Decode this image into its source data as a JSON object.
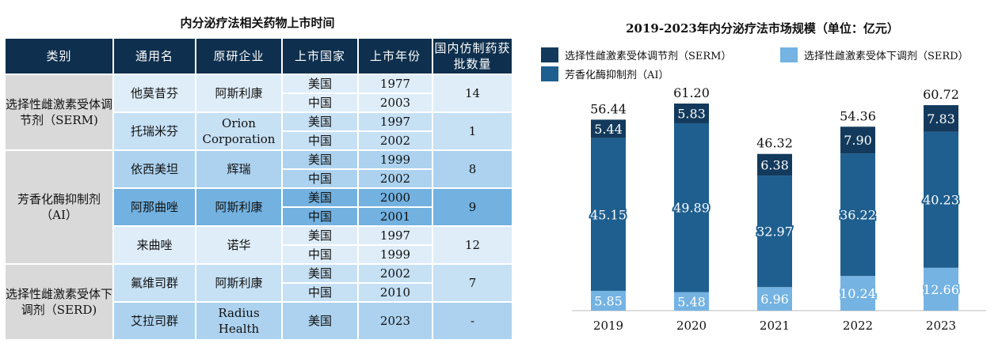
{
  "table": {
    "title": "内分泌疗法相关药物上市时间",
    "headers": [
      "类别",
      "通用名",
      "原研企业",
      "上市国家",
      "上市年份",
      "国内仿制药获批数量"
    ],
    "groups": [
      {
        "category": "选择性雌激素受体调节剂（SERM)",
        "drugs": [
          {
            "name": "他莫昔芬",
            "company": "阿斯利康",
            "launches": [
              {
                "country": "美国",
                "year": "1977"
              },
              {
                "country": "中国",
                "year": "2003"
              }
            ],
            "generics": "14"
          },
          {
            "name": "托瑞米芬",
            "company": "Orion Corporation",
            "launches": [
              {
                "country": "美国",
                "year": "1997"
              },
              {
                "country": "中国",
                "year": "2002"
              }
            ],
            "generics": "1"
          }
        ]
      },
      {
        "category": "芳香化酶抑制剂（AI）",
        "drugs": [
          {
            "name": "依西美坦",
            "company": "辉瑞",
            "launches": [
              {
                "country": "美国",
                "year": "1999"
              },
              {
                "country": "中国",
                "year": "2002"
              }
            ],
            "generics": "8"
          },
          {
            "name": "阿那曲唑",
            "company": "阿斯利康",
            "launches": [
              {
                "country": "美国",
                "year": "2000"
              },
              {
                "country": "中国",
                "year": "2001"
              }
            ],
            "generics": "9"
          },
          {
            "name": "来曲唑",
            "company": "诺华",
            "launches": [
              {
                "country": "美国",
                "year": "1997"
              },
              {
                "country": "中国",
                "year": "1999"
              }
            ],
            "generics": "12"
          }
        ]
      },
      {
        "category": "选择性雌激素受体下调剂（SERD)",
        "drugs": [
          {
            "name": "氟维司群",
            "company": "阿斯利康",
            "launches": [
              {
                "country": "美国",
                "year": "2002"
              },
              {
                "country": "中国",
                "year": "2010"
              }
            ],
            "generics": "7"
          },
          {
            "name": "艾拉司群",
            "company": "Radius Health",
            "launches": [
              {
                "country": "美国",
                "year": "2023"
              }
            ],
            "generics": "-"
          }
        ]
      }
    ],
    "colors": {
      "header": "#0e2f4d",
      "category": "#d9d9d9"
    }
  },
  "chart_data": {
    "type": "bar",
    "stacked": true,
    "title": "2019-2023年内分泌疗法市场规模（单位：亿元）",
    "categories": [
      "2019",
      "2020",
      "2021",
      "2022",
      "2023"
    ],
    "series": [
      {
        "name": "选择性雌激素受体下调剂（SERD）",
        "values": [
          5.85,
          5.48,
          6.96,
          10.24,
          12.66
        ],
        "labels": [
          "5.85",
          "5.48",
          "6.96",
          "10.24",
          "12.66"
        ],
        "color": "#74b3e2"
      },
      {
        "name": "芳香化酶抑制剂（AI）",
        "values": [
          45.15,
          49.89,
          32.97,
          36.22,
          40.23
        ],
        "labels": [
          "45.15",
          "49.89",
          "32.97",
          "36.22",
          "40.23"
        ],
        "color": "#1f5f8f"
      },
      {
        "name": "选择性雌激素受体调节剂（SERM）",
        "values": [
          5.44,
          5.83,
          6.38,
          7.9,
          7.83
        ],
        "labels": [
          "5.44",
          "5.83",
          "6.38",
          "7.90",
          "7.83"
        ],
        "color": "#133a5c"
      }
    ],
    "totals": [
      "56.44",
      "61.20",
      "46.32",
      "54.36",
      "60.72"
    ],
    "legend_order": [
      2,
      0,
      1
    ],
    "legend_position": "top-left",
    "grid": false,
    "ylim": [
      0,
      62
    ]
  }
}
